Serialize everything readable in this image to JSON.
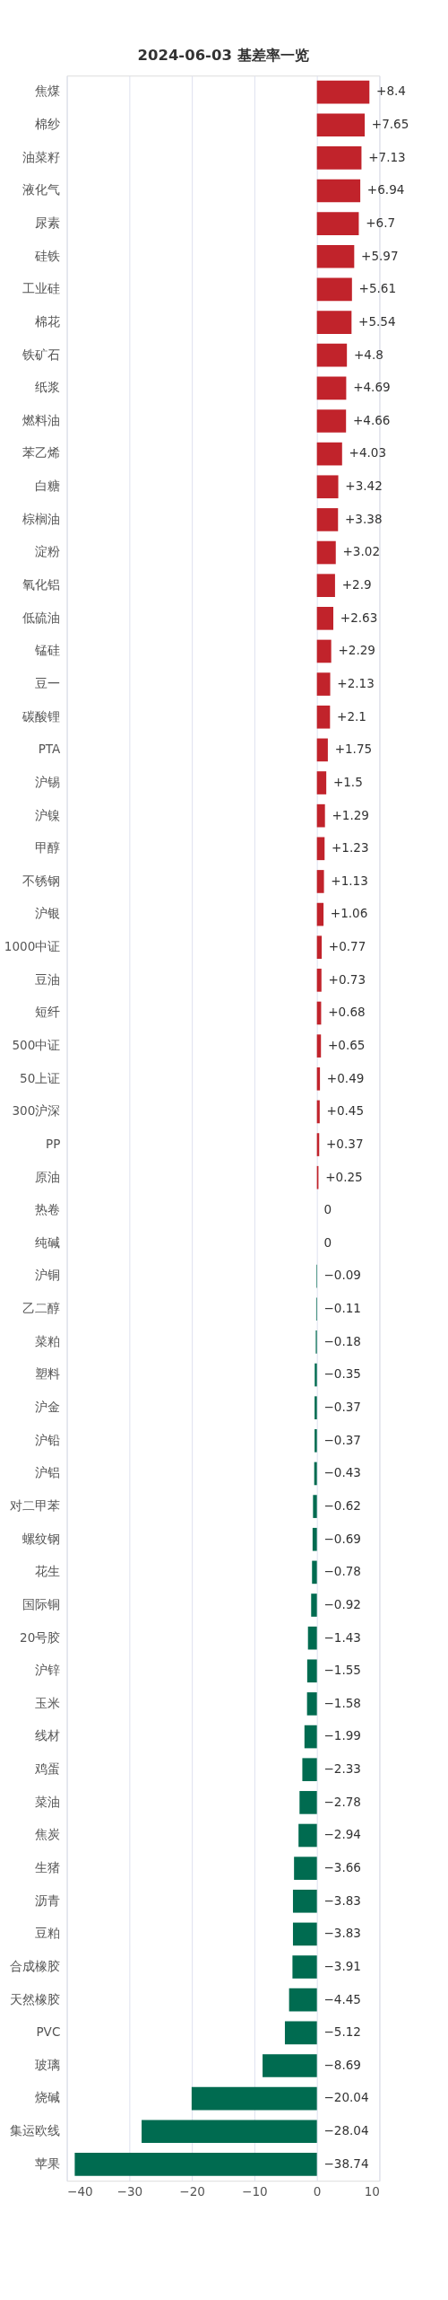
{
  "chart_data": {
    "type": "bar",
    "orientation": "horizontal",
    "title": "2024-06-03 基差率一览",
    "categories": [
      "焦煤",
      "棉纱",
      "油菜籽",
      "液化气",
      "尿素",
      "硅铁",
      "工业硅",
      "棉花",
      "铁矿石",
      "纸浆",
      "燃料油",
      "苯乙烯",
      "白糖",
      "棕榈油",
      "淀粉",
      "氧化铝",
      "低硫油",
      "锰硅",
      "豆一",
      "碳酸锂",
      "PTA",
      "沪锡",
      "沪镍",
      "甲醇",
      "不锈钢",
      "沪银",
      "1000中证",
      "豆油",
      "短纤",
      "500中证",
      "50上证",
      "300沪深",
      "PP",
      "原油",
      "热卷",
      "纯碱",
      "沪铜",
      "乙二醇",
      "菜粕",
      "塑料",
      "沪金",
      "沪铅",
      "沪铝",
      "对二甲苯",
      "螺纹钢",
      "花生",
      "国际铜",
      "20号胶",
      "沪锌",
      "玉米",
      "线材",
      "鸡蛋",
      "菜油",
      "焦炭",
      "生猪",
      "沥青",
      "豆粕",
      "合成橡胶",
      "天然橡胶",
      "PVC",
      "玻璃",
      "烧碱",
      "集运欧线",
      "苹果"
    ],
    "values": [
      8.4,
      7.65,
      7.13,
      6.94,
      6.7,
      5.97,
      5.61,
      5.54,
      4.8,
      4.69,
      4.66,
      4.03,
      3.42,
      3.38,
      3.02,
      2.9,
      2.63,
      2.29,
      2.13,
      2.1,
      1.75,
      1.5,
      1.29,
      1.23,
      1.13,
      1.06,
      0.77,
      0.73,
      0.68,
      0.65,
      0.49,
      0.45,
      0.37,
      0.25,
      0,
      0,
      -0.09,
      -0.11,
      -0.18,
      -0.35,
      -0.37,
      -0.37,
      -0.43,
      -0.62,
      -0.69,
      -0.78,
      -0.92,
      -1.43,
      -1.55,
      -1.58,
      -1.99,
      -2.33,
      -2.78,
      -2.94,
      -3.66,
      -3.83,
      -3.83,
      -3.91,
      -4.45,
      -5.12,
      -8.69,
      -20.04,
      -28.04,
      -38.74
    ],
    "value_labels": [
      "+8.4",
      "+7.65",
      "+7.13",
      "+6.94",
      "+6.7",
      "+5.97",
      "+5.61",
      "+5.54",
      "+4.8",
      "+4.69",
      "+4.66",
      "+4.03",
      "+3.42",
      "+3.38",
      "+3.02",
      "+2.9",
      "+2.63",
      "+2.29",
      "+2.13",
      "+2.1",
      "+1.75",
      "+1.5",
      "+1.29",
      "+1.23",
      "+1.13",
      "+1.06",
      "+0.77",
      "+0.73",
      "+0.68",
      "+0.65",
      "+0.49",
      "+0.45",
      "+0.37",
      "+0.25",
      "0",
      "0",
      "−0.09",
      "−0.11",
      "−0.18",
      "−0.35",
      "−0.37",
      "−0.37",
      "−0.43",
      "−0.62",
      "−0.69",
      "−0.78",
      "−0.92",
      "−1.43",
      "−1.55",
      "−1.58",
      "−1.99",
      "−2.33",
      "−2.78",
      "−2.94",
      "−3.66",
      "−3.83",
      "−3.83",
      "−3.91",
      "−4.45",
      "−5.12",
      "−8.69",
      "−20.04",
      "−28.04",
      "−38.74"
    ],
    "colors": [
      "#c1232b",
      "#c1232b",
      "#c1232b",
      "#c1232b",
      "#c1232b",
      "#c1232b",
      "#c1232b",
      "#c1232b",
      "#c1232b",
      "#c1232b",
      "#c1232b",
      "#c1232b",
      "#c1232b",
      "#c1232b",
      "#c1232b",
      "#c1232b",
      "#c1232b",
      "#c1232b",
      "#c1232b",
      "#c1232b",
      "#c1232b",
      "#c1232b",
      "#c1232b",
      "#c1232b",
      "#c1232b",
      "#c1232b",
      "#c1232b",
      "#c1232b",
      "#c1232b",
      "#c1232b",
      "#c1232b",
      "#c1232b",
      "#c1232b",
      "#c1232b",
      "#c1232b",
      "#c1232b",
      "#006b50",
      "#006b50",
      "#006b50",
      "#006b50",
      "#006b50",
      "#006b50",
      "#006b50",
      "#006b50",
      "#006b50",
      "#006b50",
      "#006b50",
      "#006b50",
      "#006b50",
      "#006b50",
      "#006b50",
      "#006b50",
      "#006b50",
      "#006b50",
      "#006b50",
      "#006b50",
      "#006b50",
      "#006b50",
      "#006b50",
      "#006b50",
      "#006b50",
      "#006b50",
      "#006b50",
      "#006b50"
    ],
    "xlim": [
      -40,
      10
    ],
    "xticks": [
      -40,
      -30,
      -20,
      -10,
      0,
      10
    ],
    "grid": "x"
  }
}
